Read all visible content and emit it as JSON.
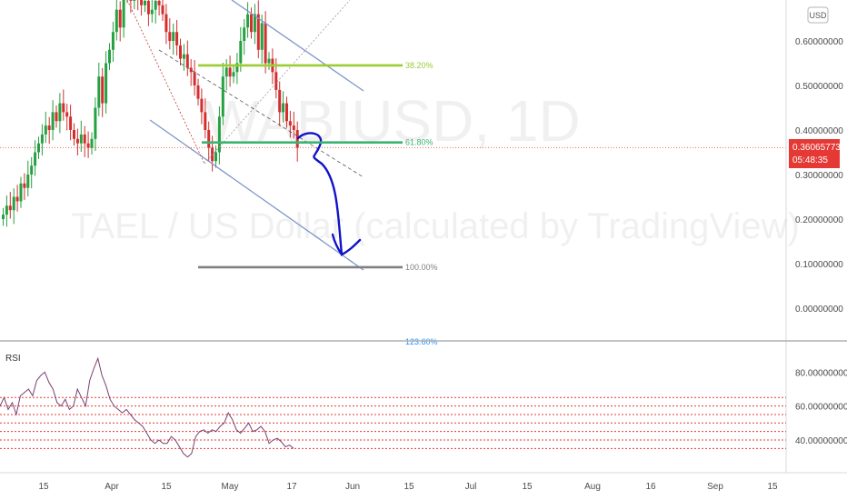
{
  "chart_data": [
    {
      "type": "candlestick",
      "symbol_watermark": "WABIUSD, 1D",
      "subtitle_watermark": "TAEL / US Dollar (calculated by TradingView)",
      "currency_button": "USD",
      "ylim": [
        -0.04,
        0.67
      ],
      "y_ticks": [
        "0.60000000",
        "0.50000000",
        "0.40000000",
        "0.30000000",
        "0.20000000",
        "0.10000000",
        "0.00000000"
      ],
      "y_tick_values": [
        0.6,
        0.5,
        0.4,
        0.3,
        0.2,
        0.1,
        0.0
      ],
      "x_ticks": [
        "15",
        "Apr",
        "15",
        "May",
        "17",
        "Jun",
        "15",
        "Jul",
        "15",
        "Aug",
        "16",
        "Sep",
        "15"
      ],
      "last_price": "0.36065773",
      "countdown": "05:48:35",
      "last_price_value": 0.3607,
      "fib_levels": [
        {
          "label": "38.20%",
          "value": 0.545,
          "color": "#9acd32"
        },
        {
          "label": "61.80%",
          "value": 0.372,
          "color": "#3cb371"
        },
        {
          "label": "100.00%",
          "value": 0.092,
          "color": "#808080"
        },
        {
          "label": "123.60%",
          "value": -0.075,
          "color": "#1e90ff"
        }
      ],
      "close_series": [
        0.21,
        0.23,
        0.22,
        0.25,
        0.24,
        0.28,
        0.27,
        0.3,
        0.32,
        0.35,
        0.37,
        0.39,
        0.41,
        0.4,
        0.44,
        0.42,
        0.46,
        0.44,
        0.43,
        0.4,
        0.38,
        0.37,
        0.39,
        0.37,
        0.36,
        0.38,
        0.45,
        0.52,
        0.46,
        0.55,
        0.58,
        0.62,
        0.67,
        0.63,
        0.7,
        0.72,
        0.69,
        0.71,
        0.7,
        0.68,
        0.69,
        0.66,
        0.67,
        0.69,
        0.68,
        0.66,
        0.62,
        0.6,
        0.62,
        0.59,
        0.56,
        0.57,
        0.54,
        0.53,
        0.5,
        0.47,
        0.44,
        0.4,
        0.36,
        0.33,
        0.35,
        0.43,
        0.52,
        0.54,
        0.52,
        0.53,
        0.55,
        0.6,
        0.63,
        0.66,
        0.62,
        0.66,
        0.58,
        0.64,
        0.55,
        0.56,
        0.53,
        0.49,
        0.44,
        0.46,
        0.42,
        0.41,
        0.4,
        0.36
      ]
    },
    {
      "type": "line",
      "title": "RSI",
      "ylim": [
        25,
        93
      ],
      "y_ticks": [
        "80.00000000",
        "60.00000000",
        "40.00000000"
      ],
      "y_tick_values": [
        80,
        60,
        40
      ],
      "bands": [
        65,
        60,
        55,
        50,
        45,
        40,
        35
      ],
      "band_color": "#e53935",
      "values": [
        60,
        65,
        58,
        62,
        55,
        66,
        68,
        70,
        66,
        75,
        78,
        80,
        74,
        70,
        62,
        60,
        64,
        58,
        60,
        70,
        65,
        60,
        75,
        82,
        88,
        78,
        72,
        64,
        60,
        58,
        56,
        58,
        55,
        52,
        50,
        48,
        44,
        40,
        38,
        40,
        38,
        38,
        42,
        40,
        36,
        32,
        30,
        32,
        42,
        45,
        46,
        44,
        46,
        45,
        48,
        50,
        56,
        52,
        46,
        44,
        47,
        50,
        45,
        46,
        48,
        45,
        38,
        40,
        41,
        39,
        36,
        37,
        35
      ]
    }
  ],
  "projection_color": "#1212c8",
  "colors": {
    "up": "#26a041",
    "down": "#d32f2f",
    "channel": "#7d96c8",
    "rsi_line": "#7b3f6f",
    "price_line": "#e53935"
  }
}
